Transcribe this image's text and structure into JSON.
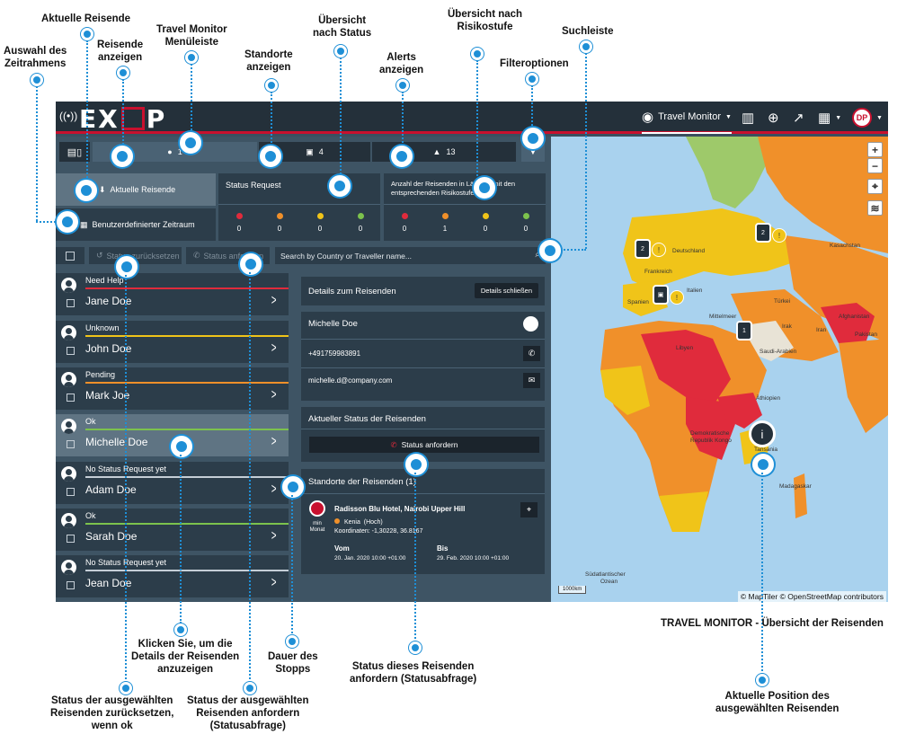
{
  "annotations": {
    "aktuelle_reisende": "Aktuelle Reisende",
    "auswahl_zeitraum": [
      "Auswahl des",
      "Zeitrahmens"
    ],
    "reisende_anzeigen": [
      "Reisende",
      "anzeigen"
    ],
    "menueleiste": [
      "Travel Monitor",
      "Menüleiste"
    ],
    "standorte_anzeigen": [
      "Standorte",
      "anzeigen"
    ],
    "uebersicht_status": [
      "Übersicht",
      "nach Status"
    ],
    "alerts_anzeigen": [
      "Alerts",
      "anzeigen"
    ],
    "uebersicht_risiko": [
      "Übersicht nach",
      "Risikostufe"
    ],
    "filteroptionen": "Filteroptionen",
    "suchleiste": "Suchleiste",
    "klicken_details": [
      "Klicken Sie, um die",
      "Details der Reisenden",
      "anzuzeigen"
    ],
    "dauer_stopps": [
      "Dauer des",
      "Stopps"
    ],
    "status_anfordern_einzeln": [
      "Status dieses Reisenden",
      "anfordern (Statusabfrage)"
    ],
    "travel_monitor_uebersicht": "TRAVEL MONITOR - Übersicht der Reisenden",
    "status_zuruecksetzen": [
      "Status der ausgewählten",
      "Reisenden zurücksetzen,",
      "wenn ok"
    ],
    "status_anfordern_ausgewaehlt": [
      "Status der ausgewählten",
      "Reisenden anfordern",
      "(Statusabfrage)"
    ],
    "aktuelle_position": [
      "Aktuelle Position des",
      "ausgewählten Reisenden"
    ]
  },
  "topbar": {
    "logo": "EXOP",
    "nav_travel_monitor": "Travel Monitor",
    "user_initials": "DP",
    "icons": [
      "eye-icon",
      "map-icon",
      "globe-icon",
      "chart-icon",
      "calendar-icon"
    ]
  },
  "tabs": {
    "travellers_count": "1",
    "locations_count": "4",
    "alerts_count": "13"
  },
  "current_travellers_button": "Aktuelle Reisende",
  "custom_range_button": "Benutzerdefinierter Zeitraum",
  "status_request_card": {
    "title": "Status Request",
    "cells": [
      {
        "color": "#e02b3c",
        "value": "0"
      },
      {
        "color": "#f0902a",
        "value": "0"
      },
      {
        "color": "#f0c419",
        "value": "0"
      },
      {
        "color": "#7cc24d",
        "value": "0"
      }
    ]
  },
  "risk_card": {
    "title_line1": "Anzahl der Reisenden in Ländern mit den",
    "title_line2": "entsprechenden Risikostufen",
    "cells": [
      {
        "color": "#e02b3c",
        "value": "0"
      },
      {
        "color": "#f0902a",
        "value": "1"
      },
      {
        "color": "#f0c419",
        "value": "0"
      },
      {
        "color": "#7cc24d",
        "value": "0"
      }
    ]
  },
  "toolbar": {
    "reset_status": "Status zurücksetzen",
    "request_status": "Status anfordern",
    "search_placeholder": "Search by Country or Traveller name..."
  },
  "travellers": [
    {
      "status": "Need Help",
      "name": "Jane Doe",
      "color": "#e02b3c"
    },
    {
      "status": "Unknown",
      "name": "John Doe",
      "color": "#f0c419"
    },
    {
      "status": "Pending",
      "name": "Mark Joe",
      "color": "#f0902a"
    },
    {
      "status": "Ok",
      "name": "Michelle Doe",
      "color": "#7cc24d"
    },
    {
      "status": "No Status Request yet",
      "name": "Adam Doe",
      "color": "#c5ced6"
    },
    {
      "status": "Ok",
      "name": "Sarah Doe",
      "color": "#7cc24d"
    },
    {
      "status": "No Status Request yet",
      "name": "Jean Doe",
      "color": "#c5ced6"
    }
  ],
  "details": {
    "header": "Details zum Reisenden",
    "close_button": "Details schließen",
    "name": "Michelle Doe",
    "phone": "+491759983891",
    "email": "michelle.d@company.com",
    "status_header": "Aktueller Status der Reisenden",
    "status_button": "Status anfordern",
    "locations_header": "Standorte der Reisenden (1)",
    "location": {
      "hotel": "Radisson Blu Hotel, Nairobi Upper Hill",
      "country": "Kenia",
      "risk": "(Hoch)",
      "coords": "Koordinaten: -1,30228, 36.8167",
      "duration_line1": "min",
      "duration_line2": "Monat",
      "from_label": "Vom",
      "from_value": "20. Jan. 2020 10:00 +01:00",
      "to_label": "Bis",
      "to_value": "29. Feb. 2020 10:00 +01:00"
    }
  },
  "map": {
    "attribution": "© MapTiler © OpenStreetMap contributors",
    "scale": "1000km",
    "labels": [
      {
        "t": "Deutschland"
      },
      {
        "t": "Frankreich"
      },
      {
        "t": "Spanien"
      },
      {
        "t": "Italien"
      },
      {
        "t": "Türkei"
      },
      {
        "t": "Irak"
      },
      {
        "t": "Iran"
      },
      {
        "t": "Afghanistan"
      },
      {
        "t": "Pakistan"
      },
      {
        "t": "Saudi-Arabien"
      },
      {
        "t": "Libyen"
      },
      {
        "t": "Äthiopien"
      },
      {
        "t": "Demokratische"
      },
      {
        "t": "Republik Kongo"
      },
      {
        "t": "Madagaskar"
      },
      {
        "t": "Mittelmeer"
      },
      {
        "t": "Südatlantischer"
      },
      {
        "t": "Ozean"
      },
      {
        "t": "Kasachstan"
      },
      {
        "t": "Tansania"
      }
    ],
    "pin_counts": [
      "2",
      "2",
      "1"
    ]
  }
}
